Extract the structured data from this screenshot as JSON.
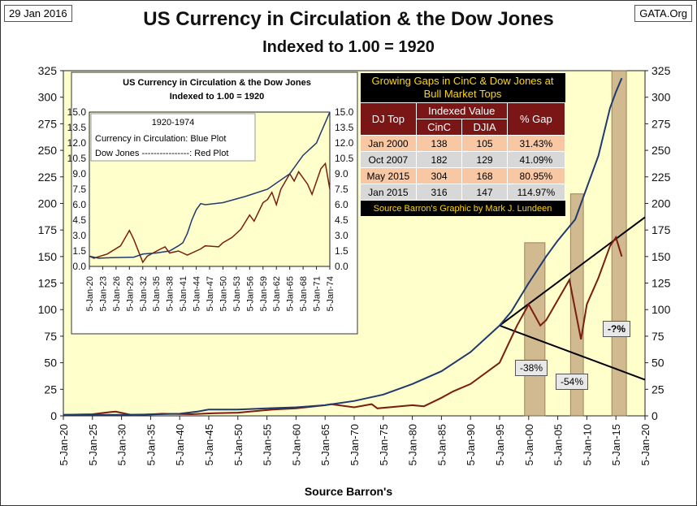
{
  "header": {
    "date": "29 Jan 2016",
    "source": "GATA.Org",
    "title": "US Currency in Circulation & the Dow Jones",
    "subtitle": "Indexed to 1.00 = 1920"
  },
  "footer": {
    "xlabel": "Source Barron's"
  },
  "colors": {
    "plot_bg": "#ffffcc",
    "currency": "#1f3a6e",
    "dow": "#7a1e12",
    "shade": "#c9ad86",
    "trend": "#000000"
  },
  "chart_data": [
    {
      "type": "line",
      "title": "US Currency in Circulation & the Dow Jones",
      "subtitle": "Indexed to 1.00 = 1920",
      "xlabel": "Source Barron's",
      "ylim": [
        0,
        325
      ],
      "yticks": [
        0,
        25,
        50,
        75,
        100,
        125,
        150,
        175,
        200,
        225,
        250,
        275,
        300,
        325
      ],
      "xticks": [
        "5-Jan-20",
        "5-Jan-25",
        "5-Jan-30",
        "5-Jan-35",
        "5-Jan-40",
        "5-Jan-45",
        "5-Jan-50",
        "5-Jan-55",
        "5-Jan-60",
        "5-Jan-65",
        "5-Jan-70",
        "5-Jan-75",
        "5-Jan-80",
        "5-Jan-85",
        "5-Jan-90",
        "5-Jan-95",
        "5-Jan-00",
        "5-Jan-05",
        "5-Jan-10",
        "5-Jan-15",
        "5-Jan-20"
      ],
      "series": [
        {
          "name": "Currency in Circulation",
          "x": [
            1920,
            1925,
            1930,
            1935,
            1940,
            1943,
            1945,
            1950,
            1955,
            1960,
            1965,
            1970,
            1975,
            1980,
            1985,
            1990,
            1995,
            1997,
            2000,
            2003,
            2005,
            2008,
            2010,
            2012,
            2014,
            2015,
            2016
          ],
          "y": [
            1,
            1,
            1,
            1.3,
            2,
            4,
            6,
            6,
            7,
            8,
            10,
            14,
            20,
            30,
            42,
            60,
            85,
            98,
            125,
            150,
            165,
            185,
            215,
            245,
            290,
            305,
            318
          ]
        },
        {
          "name": "Dow Jones",
          "x": [
            1920,
            1925,
            1928,
            1929,
            1932,
            1937,
            1942,
            1946,
            1950,
            1954,
            1956,
            1960,
            1965,
            1966,
            1970,
            1973,
            1974,
            1980,
            1982,
            1985,
            1987,
            1990,
            1995,
            1998,
            2000,
            2002,
            2003,
            2007,
            2009,
            2010,
            2012,
            2014,
            2015,
            2016
          ],
          "y": [
            1,
            1.5,
            3.5,
            4,
            0.5,
            2,
            1.5,
            2.5,
            3,
            5,
            6,
            7,
            10,
            11,
            8,
            11,
            7,
            10,
            9,
            17,
            23,
            30,
            50,
            85,
            105,
            85,
            90,
            128,
            72,
            105,
            130,
            160,
            168,
            150
          ]
        }
      ],
      "shaded_periods": [
        [
          1999.3,
          2002.8
        ],
        [
          2007.2,
          2009.4
        ],
        [
          2014.3,
          2016.8
        ]
      ],
      "trend_lines": [
        {
          "from": [
            1995,
            85
          ],
          "to": [
            2020,
            187
          ]
        },
        {
          "from": [
            1995,
            85
          ],
          "to": [
            2020,
            34
          ]
        }
      ],
      "annotations": [
        "-38%",
        "-54%",
        "-?%"
      ]
    },
    {
      "type": "line",
      "title": "US Currency in Circulation & the Dow Jones",
      "subtitle": "Indexed to 1.00 = 1920",
      "legend_title": "1920-1974",
      "legend_lines": [
        "Currency in Circulation: Blue Plot",
        "Dow Jones  ----------------: Red Plot"
      ],
      "ylim": [
        0,
        15
      ],
      "yticks": [
        "0.0",
        "1.5",
        "3.0",
        "4.5",
        "6.0",
        "7.5",
        "9.0",
        "10.5",
        "12.0",
        "13.5",
        "15.0"
      ],
      "xticks": [
        "5-Jan-20",
        "5-Jan-23",
        "5-Jan-26",
        "5-Jan-29",
        "5-Jan-32",
        "5-Jan-35",
        "5-Jan-38",
        "5-Jan-41",
        "5-Jan-44",
        "5-Jan-47",
        "5-Jan-50",
        "5-Jan-53",
        "5-Jan-56",
        "5-Jan-59",
        "5-Jan-62",
        "5-Jan-65",
        "5-Jan-68",
        "5-Jan-71",
        "5-Jan-74"
      ],
      "series": [
        {
          "name": "Currency in Circulation",
          "x": [
            1920,
            1922,
            1925,
            1930,
            1932,
            1935,
            1938,
            1940,
            1941,
            1942,
            1943,
            1944,
            1945,
            1946,
            1950,
            1955,
            1960,
            1965,
            1968,
            1971,
            1972,
            1973,
            1974
          ],
          "y": [
            1,
            0.8,
            0.85,
            0.9,
            1.2,
            1.3,
            1.5,
            2.0,
            2.3,
            3.2,
            4.5,
            5.5,
            6.1,
            6.0,
            6.2,
            6.8,
            7.5,
            9.0,
            10.8,
            12.0,
            13.0,
            14.0,
            15.0
          ]
        },
        {
          "name": "Dow Jones",
          "x": [
            1920,
            1921,
            1924,
            1927,
            1929,
            1930,
            1932,
            1933,
            1936,
            1937,
            1938,
            1940,
            1942,
            1945,
            1946,
            1949,
            1950,
            1952,
            1954,
            1956,
            1957,
            1959,
            1960,
            1961,
            1962,
            1963,
            1965,
            1966,
            1967,
            1969,
            1970,
            1972,
            1973,
            1974
          ],
          "y": [
            1,
            0.8,
            1.2,
            2.0,
            3.5,
            2.6,
            0.4,
            1.0,
            1.7,
            1.9,
            1.3,
            1.5,
            1.1,
            1.7,
            2.0,
            1.9,
            2.3,
            2.8,
            3.6,
            5.0,
            4.4,
            6.2,
            6.5,
            7.2,
            6.0,
            7.5,
            9.0,
            8.3,
            9.2,
            8.0,
            7.0,
            9.5,
            10.0,
            7.5
          ]
        }
      ]
    }
  ],
  "gap_table": {
    "title": "Growing Gaps in CinC & Dow Jones at Bull Market Tops",
    "col_top": "DJ Top",
    "col_indexed": "Indexed Value",
    "col_cinc": "CinC",
    "col_djia": "DJIA",
    "col_gap": "% Gap",
    "rows": [
      {
        "top": "Jan 2000",
        "cinc": "138",
        "djia": "105",
        "gap": "31.43%"
      },
      {
        "top": "Oct 2007",
        "cinc": "182",
        "djia": "129",
        "gap": "41.09%"
      },
      {
        "top": "May 2015",
        "cinc": "304",
        "djia": "168",
        "gap": "80.95%"
      },
      {
        "top": "Jan 2015",
        "cinc": "316",
        "djia": "147",
        "gap": "114.97%"
      }
    ],
    "source": "Source Barron's  Graphic by Mark J. Lundeen"
  },
  "callouts": {
    "c1": "-38%",
    "c2": "-54%",
    "c3": "-?%"
  }
}
